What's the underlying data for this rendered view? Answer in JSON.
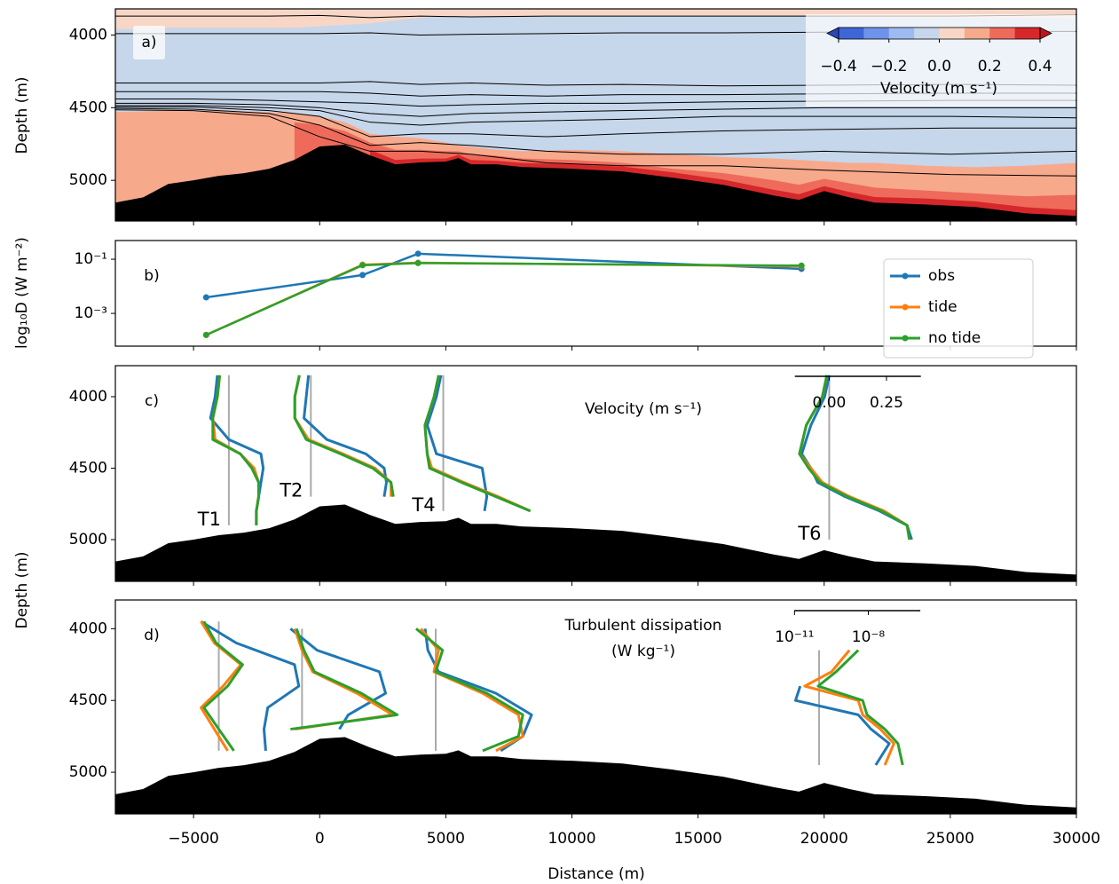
{
  "chart_data": [
    {
      "type": "contour",
      "label": "a)",
      "ylabel": "Depth (m)",
      "ylim": [
        5280,
        3820
      ],
      "yticks": [
        4000,
        4500,
        5000
      ],
      "x": [
        -8100,
        -7000,
        -6000,
        -5000,
        -4000,
        -3000,
        -2000,
        -1000,
        0,
        1000,
        2000,
        3000,
        4000,
        5000,
        5500,
        6000,
        7000,
        8000,
        10000,
        12000,
        14000,
        16000,
        18000,
        19000,
        20000,
        21000,
        22000,
        24000,
        26000,
        28000,
        30000
      ],
      "bathymetry": [
        5153,
        5117,
        5025,
        5000,
        4969,
        4951,
        4920,
        4859,
        4767,
        4755,
        4828,
        4890,
        4877,
        4871,
        4847,
        4890,
        4890,
        4908,
        4920,
        4939,
        4982,
        5031,
        5104,
        5135,
        5074,
        5117,
        5153,
        5166,
        5184,
        5227,
        5245
      ],
      "background_value": -0.05,
      "regions": [
        {
          "value": 0.05,
          "bottom": [
            3960,
            3960,
            3950,
            3950,
            3950,
            3950,
            3950,
            3950,
            3940,
            3930,
            3920,
            3900,
            3880,
            3870,
            3870,
            3870,
            3870,
            3870,
            3870,
            3870,
            3870,
            3870,
            3870,
            3870,
            3870,
            3880,
            3880,
            3880,
            3880,
            3880,
            3880
          ]
        },
        {
          "value": 0.15,
          "top": [
            4530,
            4525,
            4520,
            4520,
            4520,
            4525,
            4530,
            4540,
            4560,
            4600,
            4680,
            4700,
            4710,
            4740,
            4760,
            4770,
            4790,
            4800,
            4790,
            4800,
            4820,
            4840,
            4850,
            4860,
            4870,
            4880,
            4880,
            4900,
            4910,
            4900,
            4880
          ]
        },
        {
          "value": 0.25,
          "top": [
            null,
            null,
            null,
            null,
            null,
            null,
            null,
            4600,
            4620,
            4660,
            4740,
            4790,
            4790,
            4800,
            4800,
            4820,
            4830,
            4850,
            4860,
            4880,
            4920,
            4950,
            5000,
            5030,
            4990,
            5020,
            5050,
            5070,
            5090,
            5110,
            5100
          ]
        },
        {
          "value": 0.35,
          "top": [
            null,
            null,
            null,
            null,
            null,
            null,
            null,
            null,
            null,
            null,
            4790,
            4860,
            4850,
            4850,
            4825,
            4860,
            4865,
            4880,
            4890,
            4905,
            4945,
            4995,
            5065,
            5095,
            5040,
            5080,
            5115,
            5125,
            5145,
            5185,
            5205
          ]
        }
      ],
      "isopycnal_x": [
        -8100,
        -5000,
        -2000,
        0,
        2000,
        4000,
        6000,
        9000,
        12000,
        16000,
        20000,
        25000,
        30000
      ],
      "isopycnals": [
        [
          3870,
          3870,
          3870,
          3865,
          3880,
          3870,
          3875,
          3870,
          3870,
          3870,
          3870,
          3870,
          3860
        ],
        [
          3990,
          3990,
          3990,
          3990,
          3985,
          4000,
          3995,
          3990,
          3985,
          3985,
          3980,
          3975,
          3975
        ],
        [
          4330,
          4330,
          4330,
          4330,
          4320,
          4340,
          4330,
          4345,
          4340,
          4350,
          4345,
          4340,
          4345
        ],
        [
          4390,
          4390,
          4390,
          4390,
          4400,
          4420,
          4410,
          4420,
          4410,
          4410,
          4405,
          4400,
          4400
        ],
        [
          4440,
          4440,
          4450,
          4460,
          4470,
          4490,
          4480,
          4470,
          4470,
          4460,
          4455,
          4450,
          4450
        ],
        [
          4470,
          4470,
          4480,
          4500,
          4540,
          4560,
          4540,
          4530,
          4520,
          4510,
          4500,
          4500,
          4500
        ],
        [
          4485,
          4485,
          4500,
          4520,
          4600,
          4620,
          4600,
          4590,
          4580,
          4560,
          4560,
          4560,
          4570
        ],
        [
          4495,
          4495,
          4520,
          4560,
          4700,
          4680,
          4680,
          4700,
          4680,
          4660,
          4650,
          4640,
          4640
        ],
        [
          4505,
          4510,
          4540,
          4620,
          4760,
          4740,
          4760,
          4800,
          4820,
          4820,
          4800,
          4820,
          4800
        ],
        [
          4515,
          4520,
          4560,
          4700,
          4800,
          4800,
          4820,
          4880,
          4900,
          4900,
          4930,
          4960,
          4970
        ]
      ],
      "colorbar": {
        "label": "Velocity (m s⁻¹)",
        "levels": [
          -0.4,
          -0.3,
          -0.2,
          -0.1,
          0,
          0.1,
          0.2,
          0.3,
          0.4
        ],
        "colors": [
          "#2a48bb",
          "#3e66d6",
          "#6e93e9",
          "#9dbbf2",
          "#c6d6eb",
          "#f8d6c6",
          "#f7a98c",
          "#ee6b5b",
          "#d6282b",
          "#c0151b"
        ],
        "ticks": [
          {
            "value": -0.4,
            "label": "−0.4"
          },
          {
            "value": -0.2,
            "label": "−0.2"
          },
          {
            "value": 0,
            "label": "0.0"
          },
          0.2,
          0.4
        ]
      }
    },
    {
      "type": "line",
      "label": "b)",
      "ylabel": "log₁₀D (W m⁻²)",
      "log_y": true,
      "ylim": [
        6.17e-05,
        0.49
      ],
      "yticks": [
        {
          "value": 0.1,
          "label": "10⁻¹"
        },
        {
          "value": 0.001,
          "label": "10⁻³"
        }
      ],
      "x": [
        -4500,
        1700,
        3900,
        19100
      ],
      "legend": "upper right",
      "series": [
        {
          "name": "obs",
          "color": "#1f77b4",
          "values": [
            0.0039,
            0.026,
            0.16,
            0.044
          ]
        },
        {
          "name": "tide",
          "color": "#ff7f0e",
          "values": [
            0.00016,
            0.063,
            0.074,
            0.055
          ]
        },
        {
          "name": "no tide",
          "color": "#2ca02c",
          "values": [
            0.00016,
            0.06,
            0.072,
            0.058
          ]
        }
      ]
    },
    {
      "type": "profile",
      "label": "c)",
      "ylabel": "Depth (m)",
      "ylim": [
        5292,
        3783
      ],
      "yticks": [
        4000,
        4500,
        5000
      ],
      "inset": {
        "label": "Velocity (m s⁻¹)",
        "xlim": [
          -0.15,
          0.4
        ],
        "xticks": [
          {
            "value": 0,
            "label": "0.00"
          },
          {
            "value": 0.25,
            "label": "0.25"
          }
        ],
        "reference_line": 0
      },
      "stations": [
        {
          "name": "T1",
          "x": -3600,
          "depths": [
            3850,
            4000,
            4150,
            4300,
            4400,
            4500,
            4600,
            4700,
            4800,
            4900
          ],
          "values": [
            [
              -0.05,
              -0.06,
              -0.08,
              0,
              0.14,
              0.15,
              0.14,
              0.13,
              0.12,
              0.12
            ],
            [
              -0.04,
              -0.05,
              -0.07,
              -0.06,
              0.05,
              0.11,
              0.13,
              0.13,
              0.12,
              0.12
            ],
            [
              -0.04,
              -0.05,
              -0.07,
              -0.07,
              0.05,
              0.1,
              0.13,
              0.13,
              0.12,
              0.12
            ]
          ]
        },
        {
          "name": "T2",
          "x": -350,
          "depths": [
            3850,
            4000,
            4150,
            4300,
            4400,
            4500,
            4600,
            4700
          ],
          "values": [
            [
              -0.01,
              -0.02,
              -0.03,
              0.07,
              0.24,
              0.32,
              0.33,
              0.32
            ],
            [
              -0.05,
              -0.07,
              -0.07,
              -0.01,
              0.14,
              0.28,
              0.35,
              0.35
            ],
            [
              -0.05,
              -0.07,
              -0.07,
              -0.02,
              0.13,
              0.27,
              0.35,
              0.36
            ]
          ]
        },
        {
          "name": "T4",
          "x": 4900,
          "depths": [
            3850,
            4000,
            4200,
            4400,
            4500,
            4600,
            4700,
            4800
          ],
          "values": [
            [
              -0.01,
              -0.03,
              -0.07,
              -0.03,
              0.17,
              0.18,
              0.19,
              0.18
            ],
            [
              -0.02,
              -0.04,
              -0.08,
              -0.07,
              -0.05,
              0.09,
              0.24,
              0.38
            ],
            [
              -0.02,
              -0.04,
              -0.08,
              -0.07,
              -0.06,
              0.08,
              0.23,
              0.38
            ]
          ]
        },
        {
          "name": "T6",
          "x": 20200,
          "depths": [
            3850,
            4000,
            4200,
            4400,
            4500,
            4600,
            4700,
            4800,
            4900,
            5000
          ],
          "values": [
            [
              0,
              -0.02,
              -0.08,
              -0.12,
              -0.08,
              -0.05,
              0.07,
              0.22,
              0.34,
              0.36
            ],
            [
              -0.01,
              -0.03,
              -0.1,
              -0.13,
              -0.08,
              -0.03,
              0.09,
              0.24,
              0.34,
              0.35
            ],
            [
              -0.01,
              -0.03,
              -0.1,
              -0.13,
              -0.09,
              -0.04,
              0.08,
              0.23,
              0.34,
              0.35
            ]
          ]
        }
      ]
    },
    {
      "type": "profile",
      "label": "d)",
      "ylim": [
        5290,
        3800
      ],
      "yticks": [
        4000,
        4500,
        5000
      ],
      "xlabel": "Distance (m)",
      "xlim": [
        -8100,
        30000
      ],
      "xticks": [
        {
          "value": -5000,
          "label": "−5000"
        },
        0,
        5000,
        10000,
        15000,
        20000,
        25000,
        30000
      ],
      "inset": {
        "label": [
          "Turbulent dissipation",
          "(W kg⁻¹)"
        ],
        "log_x": true,
        "xlim": [
          9.8e-12,
          1.3e-06
        ],
        "xticks": [
          {
            "value": 1e-11,
            "label": "10⁻¹¹"
          },
          {
            "value": 1e-08,
            "label": "10⁻⁸"
          }
        ],
        "reference_line": 1e-10
      },
      "stations": [
        {
          "x": -4000,
          "depths": [
            3950,
            4100,
            4250,
            4400,
            4550,
            4700,
            4850
          ],
          "values": [
            [
              1.9e-11,
              5.2e-10,
              1.2e-07,
              1.8e-07,
              9.8e-09,
              6.9e-09,
              8.1e-09
            ],
            [
              1.9e-11,
              6.6e-11,
              7.9e-10,
              1.5e-10,
              1.9e-11,
              6.6e-11,
              2.3e-10
            ],
            [
              2.5e-11,
              7.8e-11,
              9.3e-10,
              2.3e-10,
              2.5e-11,
              1e-10,
              4.1e-10
            ]
          ]
        },
        {
          "x": -700,
          "depths": [
            4000,
            4150,
            4300,
            4450,
            4600,
            4700
          ],
          "values": [
            [
              3.4e-11,
              4.1e-10,
              1.4e-07,
              2.5e-07,
              7.6e-09,
              3.3e-09
            ],
            [
              5.1e-11,
              1e-10,
              2.7e-10,
              1.7e-08,
              4.8e-07,
              5.1e-11
            ],
            [
              6e-11,
              1.2e-10,
              3.2e-10,
              2.6e-08,
              7.4e-07,
              3.4e-11
            ]
          ]
        },
        {
          "x": 4600,
          "depths": [
            4000,
            4150,
            4300,
            4450,
            4600,
            4750,
            4850
          ],
          "values": [
            [
              3.7e-11,
              4.8e-11,
              1.3e-10,
              2.8e-08,
              7.9e-07,
              3.5e-07,
              4.4e-08
            ],
            [
              2.5e-11,
              1.3e-10,
              8.5e-11,
              8.1e-09,
              2.3e-07,
              3.5e-07,
              2.8e-08
            ],
            [
              1.6e-11,
              1.9e-10,
              1e-10,
              1.2e-08,
              3.5e-07,
              2.3e-07,
              8.1e-09
            ]
          ]
        },
        {
          "x": 19800,
          "depths": [
            4150,
            4300,
            4400,
            4500,
            4600,
            4700,
            4800,
            4950
          ],
          "values": [
            [
              null,
              null,
              1.7e-11,
              1.1e-11,
              3.9e-09,
              1.3e-08,
              7.1e-08,
              2e-08
            ],
            [
              1.7e-09,
              3.2e-10,
              2.6e-11,
              3.9e-09,
              5.9e-09,
              3.1e-08,
              1.1e-07,
              4.7e-08
            ],
            [
              3.9e-09,
              4.9e-10,
              9.1e-11,
              5.9e-09,
              8.9e-09,
              4.7e-08,
              1.6e-07,
              2.5e-07
            ]
          ]
        }
      ]
    }
  ]
}
